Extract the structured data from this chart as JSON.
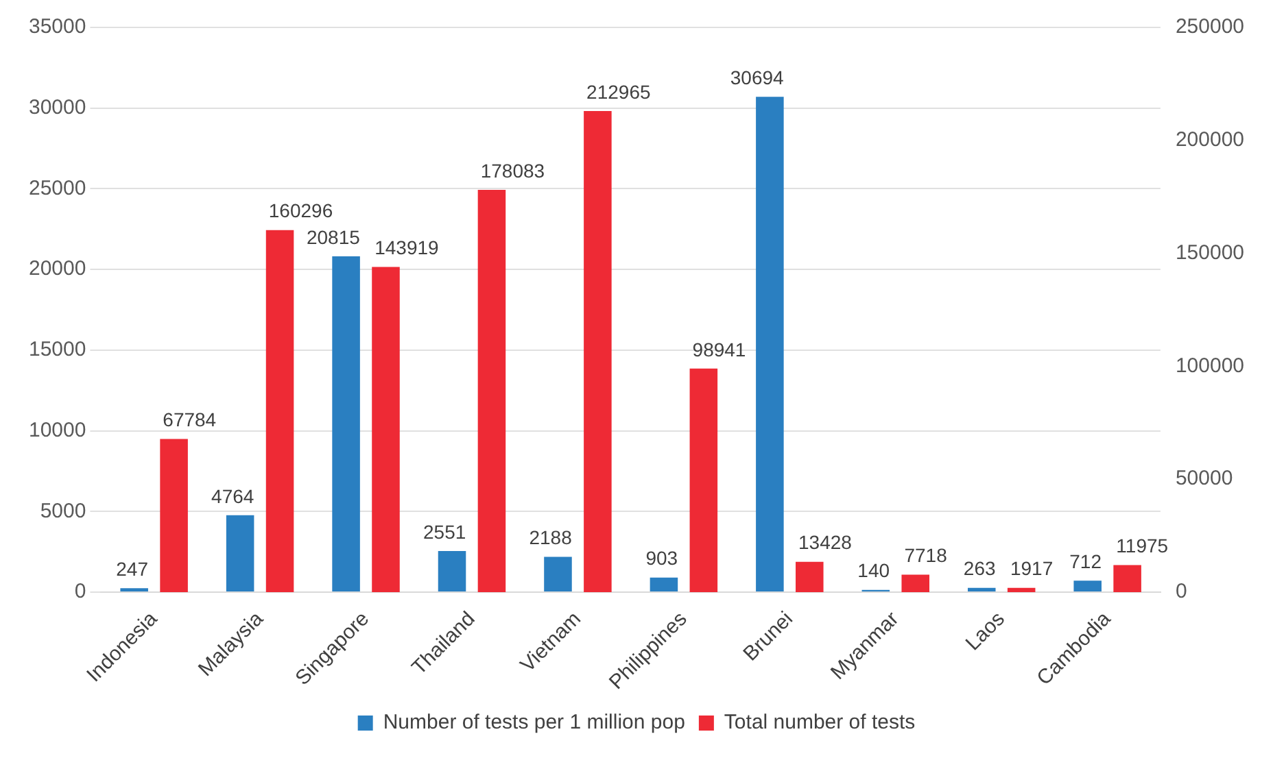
{
  "chart_data": {
    "type": "bar",
    "categories": [
      "Indonesia",
      "Malaysia",
      "Singapore",
      "Thailand",
      "Vietnam",
      "Philippines",
      "Brunei",
      "Myanmar",
      "Laos",
      "Cambodia"
    ],
    "series": [
      {
        "name": "Number of tests per 1 million pop",
        "color": "#2a7fc1",
        "values": [
          247,
          4764,
          20815,
          2551,
          2188,
          903,
          30694,
          140,
          263,
          712
        ]
      },
      {
        "name": "Total number of tests",
        "color": "#ee2a35",
        "axis": "y2",
        "values": [
          67784,
          160296,
          143919,
          178083,
          212965,
          98941,
          13428,
          7718,
          1917,
          11975
        ]
      }
    ],
    "ylim": [
      0,
      35000
    ],
    "yticks": [
      0,
      5000,
      10000,
      15000,
      20000,
      25000,
      30000,
      35000
    ],
    "y2lim": [
      0,
      250000
    ],
    "y2ticks": [
      0,
      50000,
      100000,
      150000,
      200000,
      250000
    ],
    "grid": "y",
    "legend": "bottom",
    "data_labels": true
  }
}
